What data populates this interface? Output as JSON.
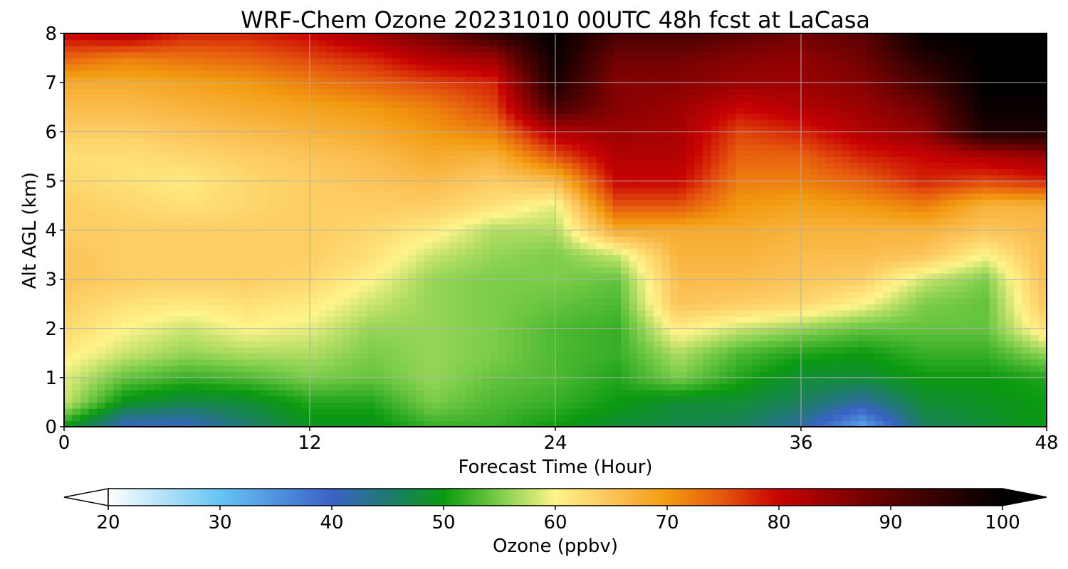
{
  "chart_data": {
    "type": "heatmap",
    "title": "WRF-Chem Ozone  20231010 00UTC 48h fcst at LaCasa",
    "xlabel": "Forecast Time (Hour)",
    "ylabel": "Alt AGL (km)",
    "xlim": [
      0,
      48
    ],
    "ylim": [
      0,
      8
    ],
    "x_ticks": [
      "0",
      "12",
      "24",
      "36",
      "48"
    ],
    "x_tick_values": [
      0,
      12,
      24,
      36,
      48
    ],
    "y_ticks": [
      "0",
      "1",
      "2",
      "3",
      "4",
      "5",
      "6",
      "7",
      "8"
    ],
    "y_tick_values": [
      0,
      1,
      2,
      3,
      4,
      5,
      6,
      7,
      8
    ],
    "grid": true,
    "colorbar": {
      "label": "Ozone  (ppbv)",
      "range": [
        20,
        100
      ],
      "extend": "both",
      "ticks": [
        "20",
        "30",
        "40",
        "50",
        "60",
        "70",
        "80",
        "90",
        "100"
      ],
      "tick_values": [
        20,
        30,
        40,
        50,
        60,
        70,
        80,
        90,
        100
      ],
      "color_stops": [
        {
          "v": 20,
          "c": "#ffffff"
        },
        {
          "v": 30,
          "c": "#66c4f4"
        },
        {
          "v": 40,
          "c": "#3a62c6"
        },
        {
          "v": 45,
          "c": "#1f7a70"
        },
        {
          "v": 50,
          "c": "#0a9a10"
        },
        {
          "v": 55,
          "c": "#7ccd4a"
        },
        {
          "v": 60,
          "c": "#fff48a"
        },
        {
          "v": 65,
          "c": "#fcc45a"
        },
        {
          "v": 70,
          "c": "#f29a10"
        },
        {
          "v": 75,
          "c": "#e5560e"
        },
        {
          "v": 80,
          "c": "#c80202"
        },
        {
          "v": 90,
          "c": "#5a0202"
        },
        {
          "v": 100,
          "c": "#000000"
        }
      ]
    },
    "x": [
      0,
      3,
      6,
      9,
      12,
      15,
      18,
      21,
      24,
      27,
      30,
      33,
      36,
      39,
      42,
      45,
      48
    ],
    "y": [
      0,
      0.5,
      1,
      1.5,
      2,
      2.5,
      3,
      3.5,
      4,
      4.5,
      5,
      5.5,
      6,
      6.5,
      7,
      7.5,
      8
    ],
    "z": [
      [
        50,
        40,
        40,
        45,
        49,
        49,
        52,
        52,
        50,
        48,
        47,
        46,
        42,
        33,
        46,
        48,
        50
      ],
      [
        58,
        49,
        47,
        48,
        51,
        51,
        55,
        53,
        52,
        50,
        48,
        48,
        46,
        42,
        48,
        49,
        50
      ],
      [
        59,
        54,
        52,
        53,
        55,
        54,
        56,
        54,
        53,
        51,
        55,
        51,
        48,
        48,
        50,
        50,
        51
      ],
      [
        61,
        58,
        56,
        57,
        57,
        55,
        56,
        55,
        53,
        52,
        57,
        53,
        51,
        50,
        52,
        52,
        56
      ],
      [
        63,
        60,
        58,
        60,
        59,
        56,
        56,
        55,
        53,
        52,
        61,
        58,
        56,
        54,
        54,
        54,
        62
      ],
      [
        64,
        62,
        61,
        62,
        61,
        58,
        56,
        55,
        54,
        53,
        65,
        64,
        63,
        60,
        55,
        54,
        65
      ],
      [
        65,
        64,
        64,
        64,
        63,
        60,
        56,
        55,
        55,
        54,
        66,
        66,
        65,
        64,
        58,
        55,
        66
      ],
      [
        65,
        64,
        64,
        64,
        64,
        62,
        58,
        56,
        55,
        58,
        67,
        67,
        66,
        66,
        65,
        60,
        66
      ],
      [
        64,
        64,
        64,
        64,
        64,
        63,
        61,
        57,
        57,
        68,
        68,
        68,
        67,
        67,
        67,
        65,
        66
      ],
      [
        64,
        63,
        62,
        63,
        64,
        64,
        64,
        62,
        59,
        75,
        75,
        70,
        69,
        70,
        72,
        67,
        67
      ],
      [
        63,
        62,
        61,
        63,
        64,
        65,
        66,
        64,
        66,
        80,
        80,
        72,
        72,
        74,
        78,
        76,
        78
      ],
      [
        62,
        62,
        63,
        64,
        65,
        66,
        68,
        67,
        75,
        82,
        82,
        74,
        74,
        78,
        80,
        82,
        84
      ],
      [
        64,
        64,
        65,
        66,
        67,
        68,
        70,
        72,
        82,
        84,
        83,
        76,
        78,
        82,
        85,
        97,
        97
      ],
      [
        66,
        66,
        67,
        68,
        69,
        70,
        72,
        76,
        92,
        86,
        84,
        80,
        82,
        84,
        88,
        99,
        99
      ],
      [
        68,
        68,
        69,
        70,
        72,
        74,
        76,
        78,
        97,
        86,
        86,
        84,
        84,
        86,
        92,
        100,
        100
      ],
      [
        74,
        72,
        73,
        74,
        76,
        78,
        82,
        84,
        99,
        88,
        88,
        86,
        85,
        88,
        96,
        100,
        100
      ],
      [
        80,
        82,
        78,
        78,
        80,
        84,
        88,
        94,
        100,
        92,
        92,
        90,
        88,
        90,
        100,
        100,
        100
      ]
    ]
  }
}
